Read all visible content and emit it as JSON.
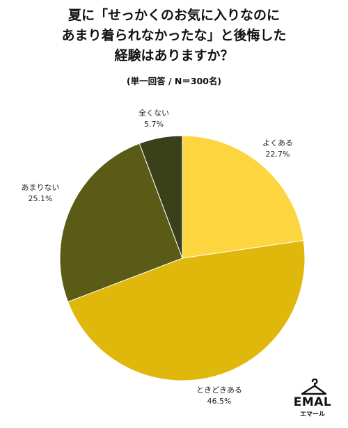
{
  "title_lines": [
    "夏に「せっかくのお気に入りなのに",
    "あまり着られなかったな」と後悔した",
    "経験はありますか？"
  ],
  "subtitle": "(単一回答 / N＝300名)",
  "chart_data": {
    "type": "pie",
    "title": "夏に「せっかくのお気に入りなのにあまり着られなかったな」と後悔した経験はありますか？",
    "subtitle": "(単一回答 / N＝300名)",
    "start_angle_deg": 0,
    "direction": "clockwise",
    "slices": [
      {
        "label": "よくある",
        "value": 22.7,
        "value_text": "22.7%",
        "color": "#FDD53F"
      },
      {
        "label": "ときどきある",
        "value": 46.5,
        "value_text": "46.5%",
        "color": "#E0B70B"
      },
      {
        "label": "あまりない",
        "value": 25.1,
        "value_text": "25.1%",
        "color": "#5B5B18"
      },
      {
        "label": "全くない",
        "value": 5.7,
        "value_text": "5.7%",
        "color": "#3A4019"
      }
    ],
    "legend": "none"
  },
  "logo": {
    "brand": "EMAL",
    "sub": "エマール",
    "icon": "hanger-icon"
  }
}
